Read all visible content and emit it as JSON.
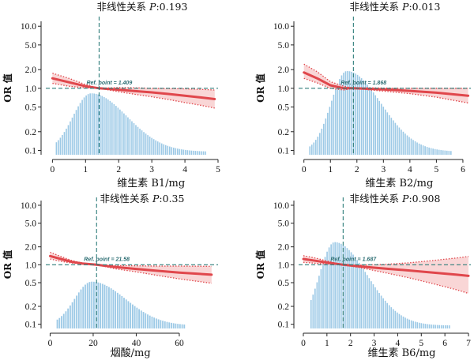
{
  "chart_data": [
    {
      "type": "line",
      "title": "非线性关系 P:0.193",
      "title_prefix": "非线性关系 ",
      "title_p": "P",
      "title_value": ":0.193",
      "xlabel": "维生素 B1/mg",
      "ylabel": "OR 值",
      "y_scale": "log",
      "y_ticks": [
        0.1,
        0.2,
        0.5,
        1.0,
        2.0,
        5.0,
        10.0
      ],
      "y_tick_labels": [
        "0.1",
        "0.2",
        "0.5",
        "1.0",
        "2.0",
        "5.0",
        "10.0"
      ],
      "x_ticks": [
        0,
        1,
        2,
        3,
        4,
        5
      ],
      "xlim": [
        -0.2,
        5.0
      ],
      "ylim": [
        0.085,
        12
      ],
      "ref_point": 1.409,
      "ref_label": "Ref. point = 1.409",
      "or_curve": {
        "x": [
          0,
          0.5,
          1.0,
          1.409,
          2.0,
          2.5,
          3.0,
          3.5,
          4.0,
          4.5,
          4.9
        ],
        "y": [
          1.45,
          1.25,
          1.08,
          1.0,
          0.95,
          0.9,
          0.86,
          0.81,
          0.76,
          0.71,
          0.67
        ]
      },
      "ci_upper": [
        1.75,
        1.45,
        1.15,
        1.0,
        1.03,
        1.02,
        1.0,
        0.99,
        0.98,
        0.96,
        0.94
      ],
      "ci_lower": [
        1.2,
        1.08,
        1.02,
        1.0,
        0.88,
        0.8,
        0.73,
        0.66,
        0.59,
        0.53,
        0.48
      ],
      "histogram": {
        "x_start": 0.1,
        "bin_width": 0.06,
        "x_end": 4.6,
        "peak": 1.15,
        "sigma": 0.55,
        "skew": 0.6,
        "peak_or": 0.83
      }
    },
    {
      "type": "line",
      "title": "非线性关系 P:0.013",
      "title_prefix": "非线性关系 ",
      "title_p": "P",
      "title_value": ":0.013",
      "xlabel": "维生素 B2/mg",
      "ylabel": "OR 值",
      "y_scale": "log",
      "y_ticks": [
        0.1,
        0.2,
        0.5,
        1.0,
        2.0,
        5.0,
        10.0
      ],
      "y_tick_labels": [
        "0.1",
        "0.2",
        "0.5",
        "1.0",
        "2.0",
        "5.0",
        "10.0"
      ],
      "x_ticks": [
        0,
        1,
        2,
        3,
        4,
        5,
        6
      ],
      "xlim": [
        -0.2,
        6.3
      ],
      "ylim": [
        0.085,
        12
      ],
      "ref_point": 1.868,
      "ref_label": "Ref. point = 1.868",
      "or_curve": {
        "x": [
          0,
          0.5,
          1.0,
          1.5,
          1.868,
          2.5,
          3.0,
          4.0,
          5.0,
          6.2
        ],
        "y": [
          1.8,
          1.45,
          1.12,
          1.0,
          1.0,
          0.98,
          0.96,
          0.91,
          0.85,
          0.76
        ]
      },
      "ci_upper": [
        2.45,
        1.85,
        1.28,
        1.08,
        1.0,
        1.02,
        1.01,
        1.0,
        1.0,
        1.0
      ],
      "ci_lower": [
        1.45,
        1.22,
        1.0,
        0.94,
        1.0,
        0.94,
        0.9,
        0.82,
        0.72,
        0.58
      ],
      "histogram": {
        "x_start": 0.2,
        "bin_width": 0.075,
        "x_end": 5.6,
        "peak": 1.6,
        "sigma": 0.6,
        "skew": 0.7,
        "peak_or": 1.9
      }
    },
    {
      "type": "line",
      "title": "非线性关系 P:0.35",
      "title_prefix": "非线性关系 ",
      "title_p": "P",
      "title_value": ":0.35",
      "xlabel": "烟酸/mg",
      "ylabel": "OR 值",
      "y_scale": "log",
      "y_ticks": [
        0.1,
        0.2,
        0.5,
        1.0,
        2.0,
        5.0,
        10.0
      ],
      "y_tick_labels": [
        "0.1",
        "0.2",
        "0.5",
        "1.0",
        "2.0",
        "5.0",
        "10.0"
      ],
      "x_ticks": [
        0,
        20,
        40,
        60
      ],
      "xlim": [
        -2,
        78
      ],
      "ylim": [
        0.085,
        12
      ],
      "ref_point": 21.58,
      "ref_label": "Ref. point = 21.58",
      "or_curve": {
        "x": [
          0,
          5,
          10,
          15,
          21.58,
          30,
          40,
          50,
          60,
          75
        ],
        "y": [
          1.4,
          1.25,
          1.12,
          1.05,
          1.0,
          0.92,
          0.85,
          0.79,
          0.74,
          0.68
        ]
      },
      "ci_upper": [
        1.62,
        1.38,
        1.18,
        1.07,
        1.0,
        0.97,
        0.96,
        0.95,
        0.95,
        0.94
      ],
      "ci_lower": [
        1.25,
        1.14,
        1.07,
        1.03,
        1.0,
        0.86,
        0.76,
        0.66,
        0.58,
        0.49
      ],
      "histogram": {
        "x_start": 3,
        "bin_width": 1.0,
        "x_end": 62,
        "peak": 19,
        "sigma": 8,
        "skew": 0.6,
        "peak_or": 0.52
      }
    },
    {
      "type": "line",
      "title": "非线性关系 P:0.908",
      "title_prefix": "非线性关系 ",
      "title_p": "P",
      "title_value": ":0.908",
      "xlabel": "维生素 B6/mg",
      "ylabel": "OR 值",
      "y_scale": "log",
      "y_ticks": [
        0.1,
        0.2,
        0.5,
        1.0,
        2.0,
        5.0,
        10.0
      ],
      "y_tick_labels": [
        "0.1",
        "0.2",
        "0.5",
        "1.0",
        "2.0",
        "5.0",
        "10.0"
      ],
      "x_ticks": [
        0,
        1,
        2,
        3,
        4,
        5,
        6,
        7
      ],
      "xlim": [
        -0.2,
        7.1
      ],
      "ylim": [
        0.085,
        12
      ],
      "ref_point": 1.687,
      "ref_label": "Ref. point = 1.687",
      "or_curve": {
        "x": [
          0,
          0.5,
          1.0,
          1.687,
          2.5,
          3.5,
          4.5,
          5.5,
          6.5,
          7.0
        ],
        "y": [
          1.25,
          1.17,
          1.09,
          1.0,
          0.93,
          0.86,
          0.8,
          0.74,
          0.68,
          0.65
        ]
      },
      "ci_upper": [
        1.42,
        1.3,
        1.16,
        1.0,
        0.99,
        1.02,
        1.08,
        1.18,
        1.3,
        1.38
      ],
      "ci_lower": [
        1.1,
        1.06,
        1.03,
        1.0,
        0.88,
        0.73,
        0.6,
        0.48,
        0.38,
        0.33
      ],
      "histogram": {
        "x_start": 0.3,
        "bin_width": 0.085,
        "x_end": 6.2,
        "peak": 1.3,
        "sigma": 0.65,
        "skew": 0.7,
        "peak_or": 2.4
      }
    }
  ],
  "colors": {
    "bar": "#9cc9e6",
    "bar_edge": "#7fb5d9",
    "curve": "#e0474c",
    "band": "#f8cfcf",
    "ci_dot": "#e0474c",
    "ref_line": "#2e7d7a",
    "axis": "#222222"
  }
}
